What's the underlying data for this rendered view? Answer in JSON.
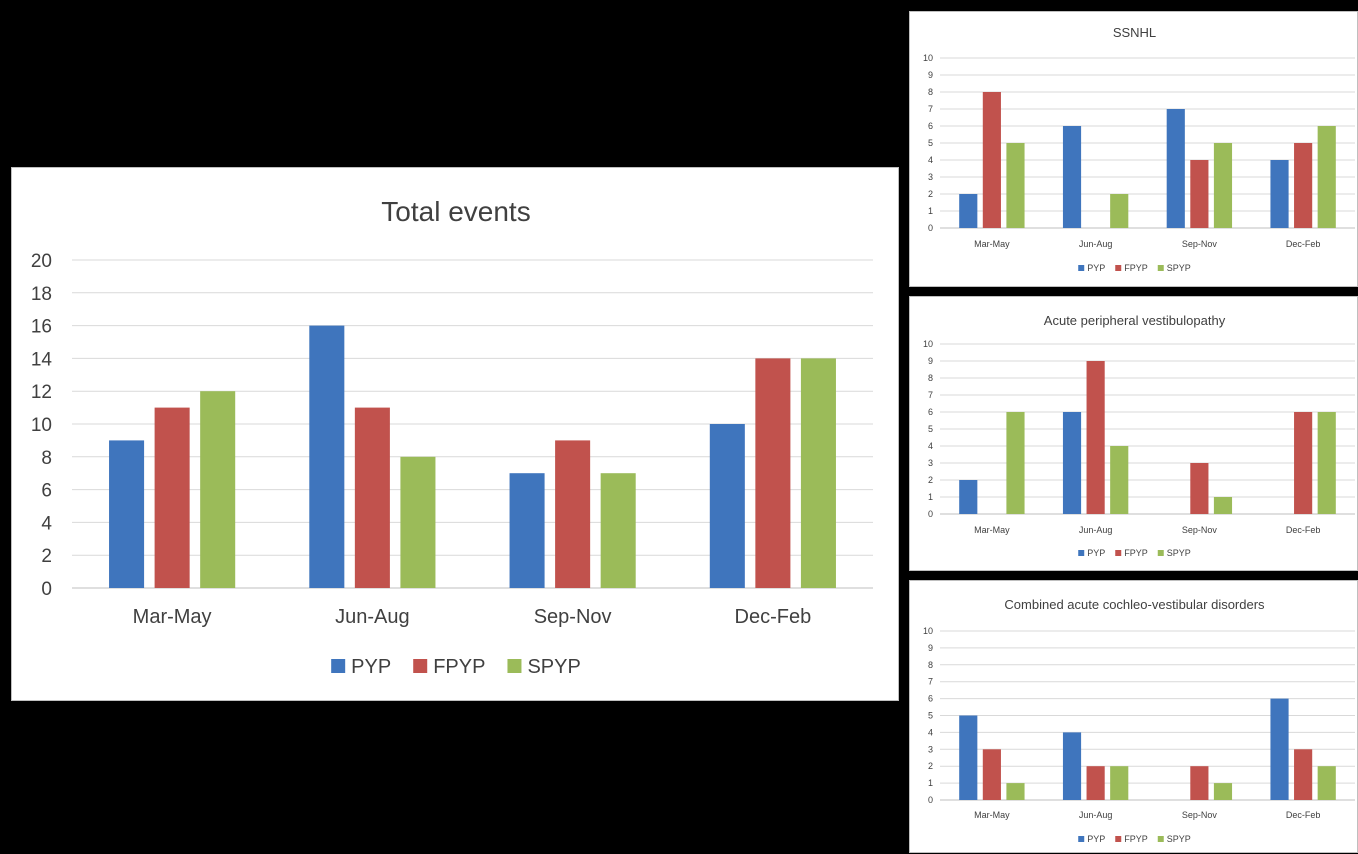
{
  "colors": {
    "PYP": "#3f75bd",
    "FPYP": "#c1524d",
    "SPYP": "#9bbb59"
  },
  "chart_data": [
    {
      "id": "main",
      "type": "bar",
      "title": "Total events",
      "categories": [
        "Mar-May",
        "Jun-Aug",
        "Sep-Nov",
        "Dec-Feb"
      ],
      "series": [
        {
          "name": "PYP",
          "values": [
            9,
            16,
            7,
            10
          ]
        },
        {
          "name": "FPYP",
          "values": [
            11,
            11,
            9,
            14
          ]
        },
        {
          "name": "SPYP",
          "values": [
            12,
            8,
            7,
            14
          ]
        }
      ],
      "ylim": [
        0,
        20
      ],
      "yticks": [
        0,
        2,
        4,
        6,
        8,
        10,
        12,
        14,
        16,
        18,
        20
      ],
      "grid": true,
      "legend": "bottom"
    },
    {
      "id": "ssnhl",
      "type": "bar",
      "title": "SSNHL",
      "categories": [
        "Mar-May",
        "Jun-Aug",
        "Sep-Nov",
        "Dec-Feb"
      ],
      "series": [
        {
          "name": "PYP",
          "values": [
            2,
            6,
            7,
            4
          ]
        },
        {
          "name": "FPYP",
          "values": [
            8,
            0,
            4,
            5
          ]
        },
        {
          "name": "SPYP",
          "values": [
            5,
            2,
            5,
            6
          ]
        }
      ],
      "ylim": [
        0,
        10
      ],
      "yticks": [
        0,
        1,
        2,
        3,
        4,
        5,
        6,
        7,
        8,
        9,
        10
      ],
      "grid": true,
      "legend": "bottom"
    },
    {
      "id": "apv",
      "type": "bar",
      "title": "Acute peripheral vestibulopathy",
      "categories": [
        "Mar-May",
        "Jun-Aug",
        "Sep-Nov",
        "Dec-Feb"
      ],
      "series": [
        {
          "name": "PYP",
          "values": [
            2,
            6,
            0,
            0
          ]
        },
        {
          "name": "FPYP",
          "values": [
            0,
            9,
            3,
            6
          ]
        },
        {
          "name": "SPYP",
          "values": [
            6,
            4,
            1,
            6
          ]
        }
      ],
      "ylim": [
        0,
        10
      ],
      "yticks": [
        0,
        1,
        2,
        3,
        4,
        5,
        6,
        7,
        8,
        9,
        10
      ],
      "grid": true,
      "legend": "bottom"
    },
    {
      "id": "cacvd",
      "type": "bar",
      "title": "Combined acute cochleo-vestibular disorders",
      "categories": [
        "Mar-May",
        "Jun-Aug",
        "Sep-Nov",
        "Dec-Feb"
      ],
      "series": [
        {
          "name": "PYP",
          "values": [
            5,
            4,
            0,
            6
          ]
        },
        {
          "name": "FPYP",
          "values": [
            3,
            2,
            2,
            3
          ]
        },
        {
          "name": "SPYP",
          "values": [
            1,
            2,
            1,
            2
          ]
        }
      ],
      "ylim": [
        0,
        10
      ],
      "yticks": [
        0,
        1,
        2,
        3,
        4,
        5,
        6,
        7,
        8,
        9,
        10
      ],
      "grid": true,
      "legend": "bottom"
    }
  ]
}
